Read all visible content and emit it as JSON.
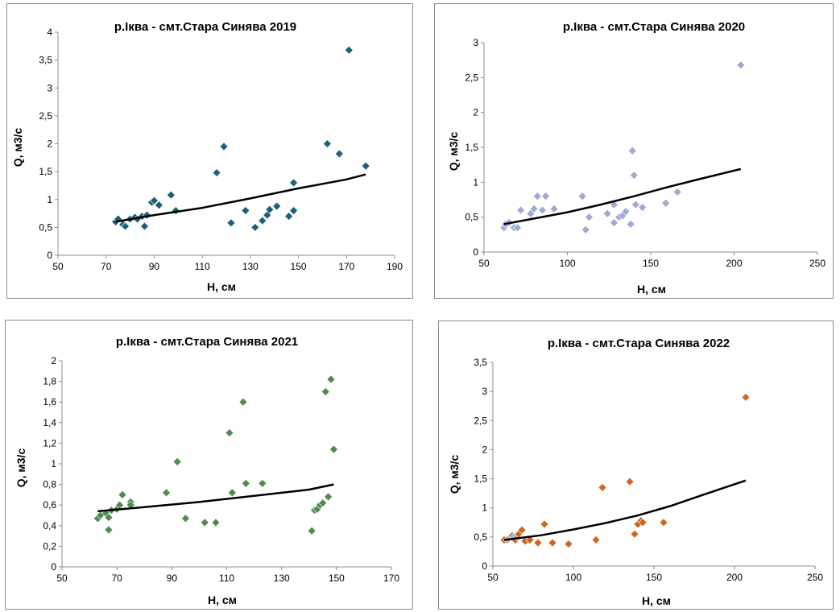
{
  "charts": [
    {
      "title": "р.Іква - смт.Стара Синява 2019",
      "xlabel": "H, см",
      "ylabel": "Q, м3/с",
      "x_ticks": [
        "50",
        "70",
        "90",
        "110",
        "130",
        "150",
        "170",
        "190"
      ],
      "y_ticks": [
        "0",
        "0,5",
        "1",
        "1,5",
        "2",
        "2,5",
        "3",
        "3,5",
        "4"
      ]
    },
    {
      "title": "р.Іква - смт.Стара Синява 2020",
      "xlabel": "H, см",
      "ylabel": "Q, м3/с",
      "x_ticks": [
        "50",
        "100",
        "150",
        "200",
        "250"
      ],
      "y_ticks": [
        "0",
        "0,5",
        "1",
        "1,5",
        "2",
        "2,5",
        "3"
      ]
    },
    {
      "title": "р.Іква - смт.Стара Синява 2021",
      "xlabel": "H, см",
      "ylabel": "Q, м3/с",
      "x_ticks": [
        "50",
        "70",
        "90",
        "110",
        "130",
        "150",
        "170"
      ],
      "y_ticks": [
        "0",
        "0,2",
        "0,4",
        "0,6",
        "0,8",
        "1",
        "1,2",
        "1,4",
        "1,6",
        "1,8",
        "2"
      ]
    },
    {
      "title": "р.Іква - смт.Стара Синява 2022",
      "xlabel": "H, см",
      "ylabel": "Q, м3/с",
      "x_ticks": [
        "50",
        "100",
        "150",
        "200",
        "250"
      ],
      "y_ticks": [
        "0",
        "0,5",
        "1",
        "1,5",
        "2",
        "2,5",
        "3",
        "3,5"
      ]
    }
  ],
  "chart_data": [
    {
      "type": "scatter",
      "title": "р.Іква - смт.Стара Синява 2019",
      "xlabel": "H, см",
      "ylabel": "Q, м3/с",
      "xlim": [
        50,
        190
      ],
      "ylim": [
        0,
        4
      ],
      "grid": false,
      "marker_color": "#1f5f7a",
      "trend_color": "#000000",
      "points": [
        [
          74,
          0.6
        ],
        [
          75,
          0.65
        ],
        [
          77,
          0.55
        ],
        [
          78,
          0.52
        ],
        [
          80,
          0.65
        ],
        [
          82,
          0.68
        ],
        [
          83,
          0.65
        ],
        [
          85,
          0.7
        ],
        [
          86,
          0.52
        ],
        [
          87,
          0.72
        ],
        [
          89,
          0.95
        ],
        [
          90,
          0.98
        ],
        [
          92,
          0.9
        ],
        [
          97,
          1.08
        ],
        [
          99,
          0.8
        ],
        [
          116,
          1.48
        ],
        [
          119,
          1.95
        ],
        [
          122,
          0.58
        ],
        [
          128,
          0.8
        ],
        [
          132,
          0.5
        ],
        [
          135,
          0.62
        ],
        [
          137,
          0.72
        ],
        [
          138,
          0.82
        ],
        [
          141,
          0.88
        ],
        [
          146,
          0.7
        ],
        [
          148,
          0.8
        ],
        [
          148,
          1.3
        ],
        [
          162,
          2.0
        ],
        [
          167,
          1.82
        ],
        [
          171,
          3.68
        ],
        [
          178,
          1.6
        ]
      ],
      "trend": [
        [
          74,
          0.6
        ],
        [
          90,
          0.72
        ],
        [
          110,
          0.85
        ],
        [
          130,
          1.02
        ],
        [
          150,
          1.2
        ],
        [
          170,
          1.36
        ],
        [
          178,
          1.45
        ]
      ]
    },
    {
      "type": "scatter",
      "title": "р.Іква - смт.Стара Синява 2020",
      "xlabel": "H, см",
      "ylabel": "Q, м3/с",
      "xlim": [
        50,
        250
      ],
      "ylim": [
        0,
        3
      ],
      "grid": false,
      "marker_color": "#9ea9d6",
      "trend_color": "#000000",
      "points": [
        [
          62,
          0.35
        ],
        [
          63,
          0.4
        ],
        [
          65,
          0.42
        ],
        [
          68,
          0.35
        ],
        [
          70,
          0.35
        ],
        [
          72,
          0.6
        ],
        [
          78,
          0.55
        ],
        [
          80,
          0.62
        ],
        [
          82,
          0.8
        ],
        [
          85,
          0.6
        ],
        [
          87,
          0.8
        ],
        [
          92,
          0.62
        ],
        [
          109,
          0.8
        ],
        [
          111,
          0.32
        ],
        [
          113,
          0.5
        ],
        [
          124,
          0.55
        ],
        [
          128,
          0.68
        ],
        [
          128,
          0.42
        ],
        [
          131,
          0.5
        ],
        [
          133,
          0.52
        ],
        [
          135,
          0.58
        ],
        [
          138,
          0.4
        ],
        [
          139,
          1.45
        ],
        [
          140,
          1.1
        ],
        [
          141,
          0.68
        ],
        [
          145,
          0.64
        ],
        [
          159,
          0.7
        ],
        [
          166,
          0.86
        ],
        [
          204,
          2.68
        ]
      ],
      "trend": [
        [
          62,
          0.4
        ],
        [
          80,
          0.48
        ],
        [
          100,
          0.57
        ],
        [
          120,
          0.68
        ],
        [
          140,
          0.8
        ],
        [
          160,
          0.93
        ],
        [
          180,
          1.05
        ],
        [
          204,
          1.19
        ]
      ]
    },
    {
      "type": "scatter",
      "title": "р.Іква - смт.Стара Синява 2021",
      "xlabel": "H, см",
      "ylabel": "Q, м3/с",
      "xlim": [
        50,
        170
      ],
      "ylim": [
        0,
        2
      ],
      "grid": false,
      "marker_color": "#4f8a4f",
      "trend_color": "#000000",
      "points": [
        [
          63,
          0.47
        ],
        [
          64,
          0.5
        ],
        [
          66,
          0.52
        ],
        [
          67,
          0.36
        ],
        [
          67,
          0.48
        ],
        [
          68,
          0.55
        ],
        [
          70,
          0.56
        ],
        [
          71,
          0.6
        ],
        [
          72,
          0.7
        ],
        [
          75,
          0.63
        ],
        [
          75,
          0.6
        ],
        [
          88,
          0.72
        ],
        [
          92,
          1.02
        ],
        [
          95,
          0.47
        ],
        [
          102,
          0.43
        ],
        [
          106,
          0.43
        ],
        [
          111,
          1.3
        ],
        [
          112,
          0.72
        ],
        [
          116,
          1.6
        ],
        [
          117,
          0.81
        ],
        [
          123,
          0.81
        ],
        [
          141,
          0.35
        ],
        [
          142,
          0.55
        ],
        [
          143,
          0.56
        ],
        [
          144,
          0.6
        ],
        [
          145,
          0.62
        ],
        [
          146,
          1.7
        ],
        [
          147,
          0.68
        ],
        [
          148,
          1.82
        ],
        [
          149,
          1.14
        ]
      ],
      "trend": [
        [
          63,
          0.54
        ],
        [
          80,
          0.58
        ],
        [
          100,
          0.63
        ],
        [
          120,
          0.69
        ],
        [
          140,
          0.75
        ],
        [
          149,
          0.8
        ]
      ]
    },
    {
      "type": "scatter",
      "title": "р.Іква - смт.Стара Синява 2022",
      "xlabel": "H, см",
      "ylabel": "Q, м3/с",
      "xlim": [
        50,
        250
      ],
      "ylim": [
        0,
        3.5
      ],
      "grid": false,
      "marker_color": "#d0661e",
      "secondary_marker_color": "#8ea9c8",
      "trend_color": "#000000",
      "points": [
        [
          57,
          0.45
        ],
        [
          59,
          0.45
        ],
        [
          60,
          0.48
        ],
        [
          61,
          0.5
        ],
        [
          62,
          0.52
        ],
        [
          63,
          0.5
        ],
        [
          64,
          0.45
        ],
        [
          65,
          0.5
        ],
        [
          66,
          0.55
        ],
        [
          68,
          0.62
        ],
        [
          70,
          0.43
        ],
        [
          73,
          0.45
        ],
        [
          78,
          0.4
        ],
        [
          82,
          0.72
        ],
        [
          87,
          0.4
        ],
        [
          97,
          0.38
        ],
        [
          114,
          0.45
        ],
        [
          118,
          1.35
        ],
        [
          135,
          1.45
        ],
        [
          138,
          0.55
        ],
        [
          140,
          0.72
        ],
        [
          142,
          0.78
        ],
        [
          143,
          0.75
        ],
        [
          156,
          0.75
        ],
        [
          207,
          2.9
        ]
      ],
      "trend": [
        [
          57,
          0.45
        ],
        [
          80,
          0.53
        ],
        [
          100,
          0.63
        ],
        [
          120,
          0.74
        ],
        [
          140,
          0.87
        ],
        [
          160,
          1.03
        ],
        [
          180,
          1.22
        ],
        [
          207,
          1.47
        ]
      ]
    }
  ]
}
